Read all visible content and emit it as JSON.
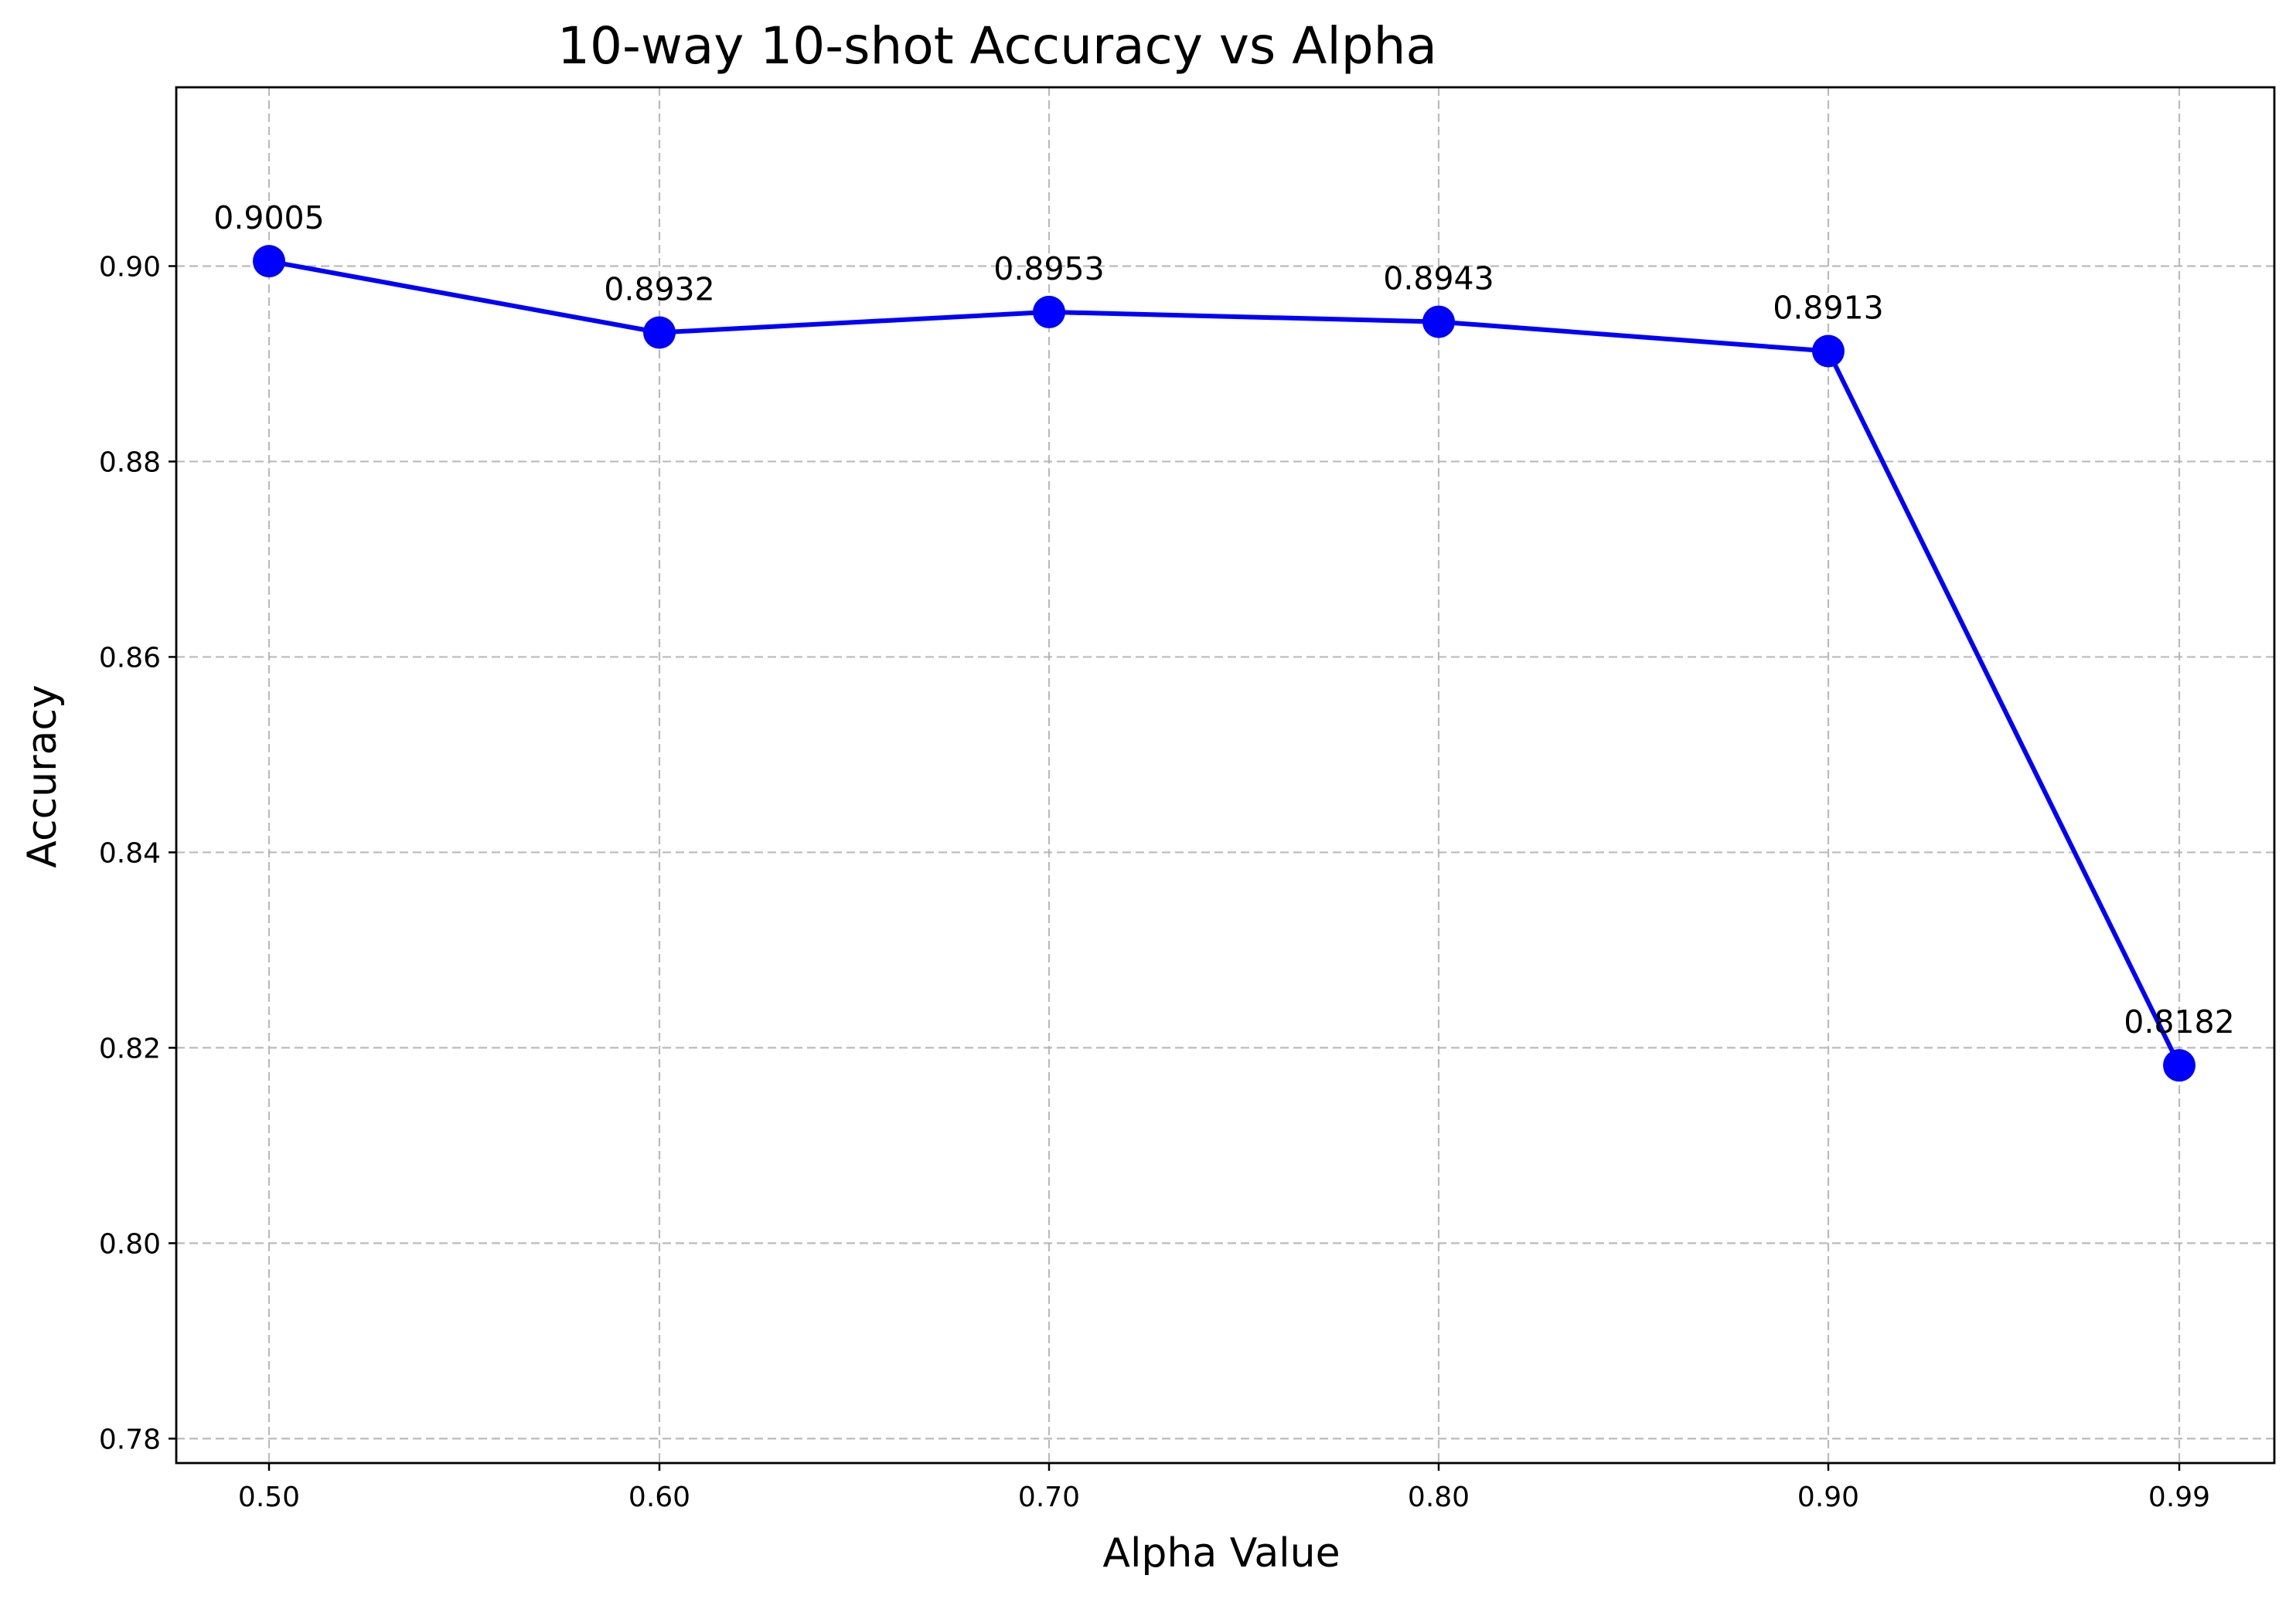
{
  "chart_data": {
    "type": "line",
    "title": "10-way 10-shot Accuracy vs Alpha",
    "xlabel": "Alpha Value",
    "ylabel": "Accuracy",
    "x_tick_labels": [
      "0.50",
      "0.60",
      "0.70",
      "0.80",
      "0.90",
      "0.99"
    ],
    "x": [
      0.5,
      0.6,
      0.7,
      0.8,
      0.9,
      0.99
    ],
    "y_ticks": [
      0.78,
      0.8,
      0.82,
      0.84,
      0.86,
      0.88,
      0.9
    ],
    "y_tick_labels": [
      "0.78",
      "0.80",
      "0.82",
      "0.84",
      "0.86",
      "0.88",
      "0.90"
    ],
    "ylim": [
      0.7775,
      0.9183
    ],
    "grid": true,
    "series": [
      {
        "values": [
          0.9005,
          0.8932,
          0.8953,
          0.8943,
          0.8913,
          0.8182
        ],
        "point_labels": [
          "0.9005",
          "0.8932",
          "0.8953",
          "0.8943",
          "0.8913",
          "0.8182"
        ],
        "color": "#0000ff",
        "marker": "circle"
      }
    ]
  }
}
